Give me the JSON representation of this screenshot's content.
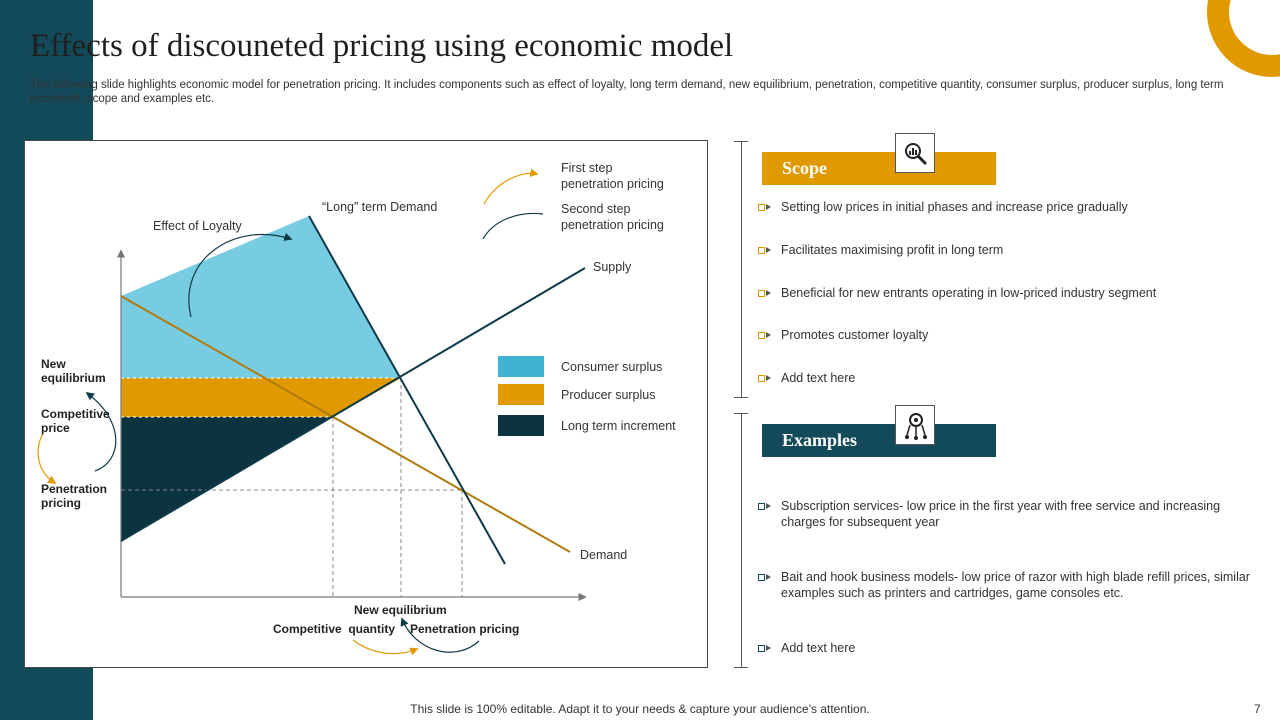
{
  "slide": {
    "title": "Effects of discouneted pricing using economic model",
    "subtitle": "The following slide highlights economic model for penetration pricing. It includes components such as effect of loyalty,  long term demand, new equilibrium, penetration, competitive quantity, consumer surplus, producer surplus, long term increment, scope and examples etc.",
    "footer": "This slide is 100% editable. Adapt it to your needs & capture your audience’s attention.",
    "page_number": "7"
  },
  "colors": {
    "teal": "#134a5a",
    "gold": "#e09a00",
    "consumer_surplus": "#78cce2",
    "producer_surplus": "#e09a00",
    "long_term_increment": "#0c3340",
    "demand_line": "#b07a10",
    "supply_line": "#0e3a48"
  },
  "diagram": {
    "label_effect_loyalty": "Effect of Loyalty",
    "label_long_term_demand": "“Long” term Demand",
    "label_supply": "Supply",
    "label_demand": "Demand",
    "label_first_step": "First step\npenetration pricing",
    "label_second_step": "Second step\npenetration pricing",
    "y_label_new_equilibrium": "New\nequilibrium",
    "y_label_competitive_price": "Competitive\nprice",
    "y_label_penetration_pricing": "Penetration\npricing",
    "x_label_new_equilibrium": "New equilibrium",
    "x_label_competitive_quantity": "Competitive  quantity",
    "x_label_penetration_pricing": "Penetration pricing",
    "legend": [
      {
        "label": "Consumer surplus",
        "color": "#3fb3d4"
      },
      {
        "label": "Producer surplus",
        "color": "#e09a00"
      },
      {
        "label": "Long term increment",
        "color": "#0c3340"
      }
    ]
  },
  "scope": {
    "heading": "Scope",
    "icon": "magnifier-analytics-icon",
    "items": [
      "Setting low prices in initial phases and increase price gradually",
      "Facilitates maximising profit in long term",
      "Beneficial for new entrants operating in low-priced industry segment",
      "Promotes customer loyalty",
      "Add text here"
    ]
  },
  "examples": {
    "heading": "Examples",
    "icon": "gear-network-icon",
    "items": [
      "Subscription services- low price in the first year with free service and increasing charges for subsequent year",
      "Bait and hook business models- low price of razor with high blade refill prices, similar examples such as printers and cartridges, game consoles etc.",
      "Add text here"
    ]
  }
}
